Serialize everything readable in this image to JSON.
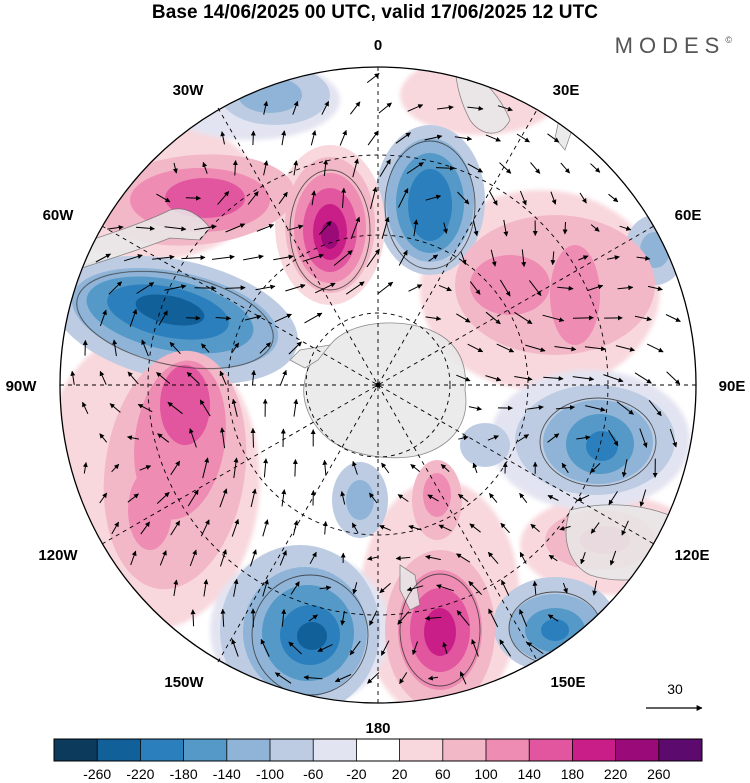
{
  "title": "Base 14/06/2025 00 UTC, valid 17/06/2025 12 UTC",
  "brand": "MODES",
  "brand_mark": "©",
  "longitude_labels": [
    "0",
    "30E",
    "60E",
    "90E",
    "120E",
    "150E",
    "180",
    "150W",
    "120W",
    "90W",
    "60W",
    "30W"
  ],
  "reference_vector_label": "30",
  "colorbar": {
    "ticks": [
      "-260",
      "-220",
      "-180",
      "-140",
      "-100",
      "-60",
      "-20",
      "20",
      "60",
      "100",
      "140",
      "180",
      "220",
      "260"
    ],
    "colors": [
      "#0b3a5c",
      "#11609a",
      "#2b7fbc",
      "#5499c8",
      "#8fb4d7",
      "#bdcce3",
      "#e3e4f1",
      "#ffffff",
      "#f8d8dd",
      "#f3b8c7",
      "#ee8cb3",
      "#e2559f",
      "#c91e87",
      "#9a0a78",
      "#5c0a6e"
    ]
  },
  "colors": {
    "neg_strong": "#11609a",
    "pos_strong": "#c91e87",
    "land": "#e8e8e8"
  }
}
